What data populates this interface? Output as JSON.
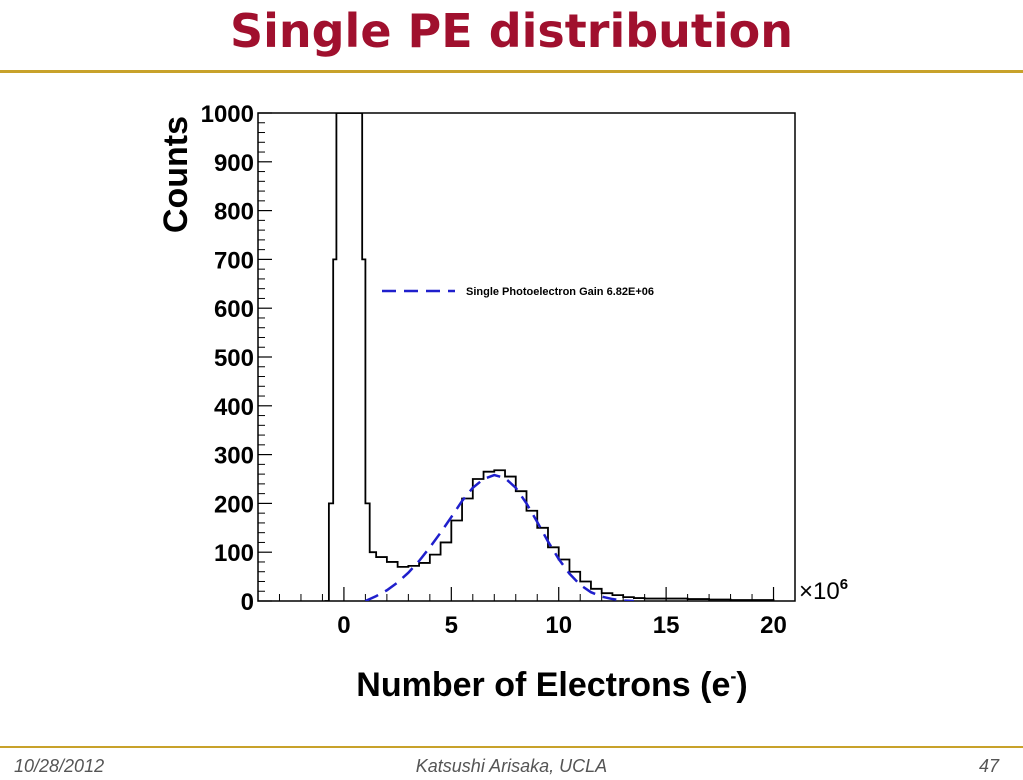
{
  "slide": {
    "title": "Single PE distribution",
    "accent_color": "#A0102E",
    "rule_color": "#C8A22A"
  },
  "footer": {
    "date": "10/28/2012",
    "author": "Katsushi Arisaka, UCLA",
    "page": "47"
  },
  "chart_data": {
    "type": "line",
    "xlabel": "Number of Electrons (e",
    "xlabel_superscript": "-",
    "xlabel_close": ")",
    "ylabel": "Counts",
    "x_multiplier_label": "×10",
    "x_multiplier_exponent": "6",
    "xlim": [
      -4,
      21
    ],
    "ylim": [
      0,
      1000
    ],
    "x_ticks": [
      0,
      5,
      10,
      15,
      20
    ],
    "y_ticks": [
      0,
      100,
      200,
      300,
      400,
      500,
      600,
      700,
      800,
      900,
      1000
    ],
    "grid": false,
    "legend": {
      "position": "upper-right",
      "entries": [
        {
          "label": "Single Photoelectron Gain 6.82E+06",
          "style": "dashed",
          "color": "#1F1FCC"
        }
      ]
    },
    "series": [
      {
        "style": "histogram",
        "color": "#000000",
        "x": [
          -0.9,
          -0.7,
          -0.5,
          -0.35,
          -0.2,
          0.7,
          0.85,
          1.0,
          1.2,
          1.5,
          2,
          2.5,
          3,
          3.5,
          4,
          4.5,
          5,
          5.5,
          6,
          6.5,
          7,
          7.5,
          8,
          8.5,
          9,
          9.5,
          10,
          10.5,
          11,
          11.5,
          12,
          12.5,
          13,
          13.5,
          14,
          15,
          16,
          17,
          18,
          19,
          20
        ],
        "y": [
          0,
          200,
          700,
          1000,
          1000,
          1000,
          700,
          200,
          100,
          90,
          80,
          70,
          72,
          78,
          95,
          120,
          165,
          210,
          250,
          265,
          268,
          255,
          225,
          185,
          150,
          110,
          85,
          60,
          40,
          25,
          16,
          12,
          8,
          6,
          5,
          5,
          4,
          3,
          2,
          2,
          1
        ]
      },
      {
        "name": "Single Photoelectron Gain 6.82E+06",
        "style": "dashed",
        "color": "#1F1FCC",
        "x": [
          1.0,
          1.5,
          2,
          2.5,
          3,
          3.5,
          4,
          4.5,
          5,
          5.5,
          6,
          6.5,
          7,
          7.5,
          8,
          8.5,
          9,
          9.5,
          10,
          10.5,
          11,
          11.5,
          12,
          12.5,
          13,
          13.5
        ],
        "y": [
          0,
          10,
          22,
          38,
          58,
          82,
          110,
          140,
          172,
          205,
          232,
          250,
          258,
          252,
          232,
          200,
          162,
          122,
          86,
          56,
          33,
          18,
          9,
          4,
          1,
          0
        ]
      }
    ]
  }
}
